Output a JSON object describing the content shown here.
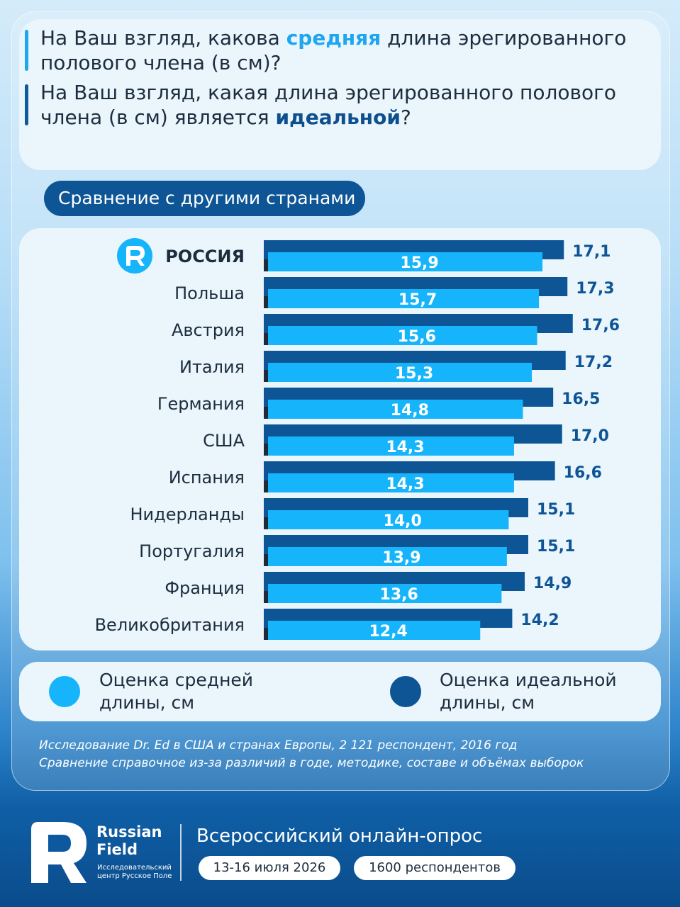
{
  "questions": {
    "q1": {
      "pre": "На Ваш взгляд, какова ",
      "highlight": "средняя",
      "post": " длина эрегированного полового члена (в см)?"
    },
    "q2": {
      "pre": "На Ваш взгляд, какая длина эрегированного полового члена (в см) является ",
      "highlight": "идеальной",
      "post": "?"
    }
  },
  "section_title": "Сравнение с другими странами",
  "chart_data": {
    "type": "bar",
    "orientation": "horizontal",
    "categories": [
      "РОССИЯ",
      "Польша",
      "Австрия",
      "Италия",
      "Германия",
      "США",
      "Испания",
      "Нидерланды",
      "Португалия",
      "Франция",
      "Великобритания"
    ],
    "highlighted_category": "РОССИЯ",
    "series": [
      {
        "name": "Оценка идеальной длины, см",
        "color": "#0e5596",
        "values": [
          17.1,
          17.3,
          17.6,
          17.2,
          16.5,
          17.0,
          16.6,
          15.1,
          15.1,
          14.9,
          14.2
        ],
        "labels": [
          "17,1",
          "17,3",
          "17,6",
          "17,2",
          "16,5",
          "17,0",
          "16,6",
          "15,1",
          "15,1",
          "14,9",
          "14,2"
        ]
      },
      {
        "name": "Оценка средней длины, см",
        "color": "#16b5fb",
        "values": [
          15.9,
          15.7,
          15.6,
          15.3,
          14.8,
          14.3,
          14.3,
          14.0,
          13.9,
          13.6,
          12.4
        ],
        "labels": [
          "15,9",
          "15,7",
          "15,6",
          "15,3",
          "14,8",
          "14,3",
          "14,3",
          "14,0",
          "13,9",
          "13,6",
          "12,4"
        ]
      }
    ],
    "axis_visible": false,
    "grid": false,
    "legend_position": "bottom"
  },
  "legend": {
    "average": "Оценка средней длины, см",
    "ideal": "Оценка идеальной длины, см"
  },
  "footnote": {
    "line1": "Исследование Dr. Ed в США и странах Европы, 2 121 респондент, 2016 год",
    "line2": "Сравнение справочное из-за различий в годе, методике, составе и объёмах выборок"
  },
  "footer": {
    "brand_line1": "Russian",
    "brand_line2": "Field",
    "brand_sub": "Исследовательский центр Русское Поле",
    "survey_title": "Всероссийский онлайн-опрос",
    "date": "13-16 июля 2026",
    "respondents": "1600 респондентов"
  },
  "colors": {
    "accent_light": "#16b5fb",
    "accent_dark": "#0e5596",
    "card_bg": "#eaf5fc"
  },
  "icons": {
    "logo": "russian-field-logo-icon"
  }
}
